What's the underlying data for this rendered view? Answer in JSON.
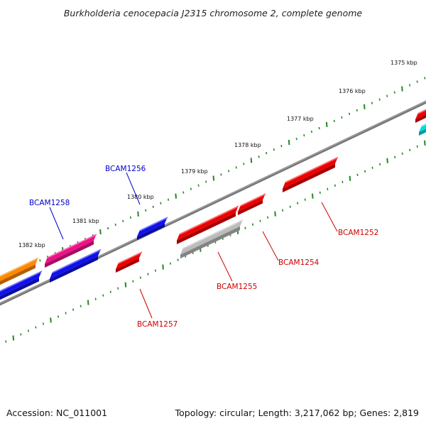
{
  "title": "Burkholderia cenocepacia J2315 chromosome 2, complete genome",
  "footer": {
    "accession": "Accession: NC_011001",
    "topology": "Topology: circular; Length: 3,217,062 bp; Genes: 2,819"
  },
  "ruler": {
    "tick_color": "#228822",
    "labels": [
      "1375 kbp",
      "1376 kbp",
      "1377 kbp",
      "1378 kbp",
      "1379 kbp",
      "1380 kbp",
      "1381 kbp",
      "1382 kbp"
    ]
  },
  "backbone_color": "#777777",
  "gene_labels": [
    {
      "text": "BCAM1256",
      "color": "#0000cc"
    },
    {
      "text": "BCAM1258",
      "color": "#0000cc"
    },
    {
      "text": "BCAM1252",
      "color": "#cc0000"
    },
    {
      "text": "BCAM1254",
      "color": "#cc0000"
    },
    {
      "text": "BCAM1255",
      "color": "#cc0000"
    },
    {
      "text": "BCAM1257",
      "color": "#cc0000"
    }
  ],
  "features": [
    {
      "name": "orange",
      "color": "#ff8800"
    },
    {
      "name": "blue",
      "color": "#1010ee"
    },
    {
      "name": "magenta",
      "color": "#ee1188"
    },
    {
      "name": "red",
      "color": "#ee0000"
    },
    {
      "name": "grey",
      "color": "#bbbbbb"
    },
    {
      "name": "cyan",
      "color": "#00dddd"
    }
  ]
}
